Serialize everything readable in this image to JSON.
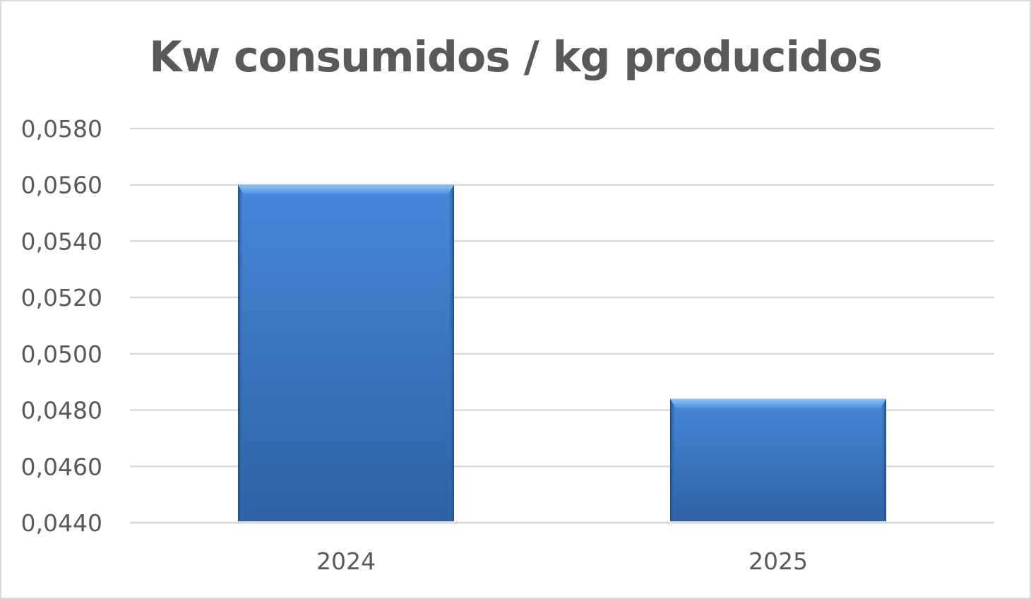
{
  "chart_data": {
    "type": "bar",
    "title": "Kw consumidos / kg producidos",
    "categories": [
      "2024",
      "2025"
    ],
    "values": [
      0.056,
      0.0484
    ],
    "ylim": [
      0.044,
      0.058
    ],
    "yticks": [
      "0,0440",
      "0,0460",
      "0,0480",
      "0,0500",
      "0,0520",
      "0,0540",
      "0,0560",
      "0,0580"
    ],
    "grid": true,
    "legend": "none",
    "bar_color": "#3a78c6"
  }
}
